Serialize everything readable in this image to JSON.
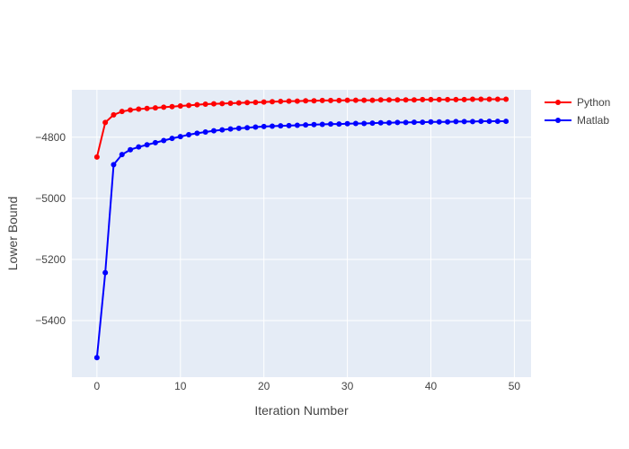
{
  "chart_data": {
    "type": "line",
    "title": "",
    "xlabel": "Iteration Number",
    "ylabel": "Lower Bound",
    "xlim": [
      -3,
      52
    ],
    "ylim": [
      -5585,
      -4645
    ],
    "xticks": [
      0,
      10,
      20,
      30,
      40,
      50
    ],
    "xtick_labels": [
      "0",
      "10",
      "20",
      "30",
      "40",
      "50"
    ],
    "yticks": [
      -5400,
      -5200,
      -5000,
      -4800
    ],
    "ytick_labels": [
      "−5400",
      "−5200",
      "−5000",
      "−4800"
    ],
    "grid": true,
    "legend_position": "top-right",
    "series": [
      {
        "name": "Python",
        "color": "#ff0000",
        "x": [
          0,
          1,
          2,
          3,
          4,
          5,
          6,
          7,
          8,
          9,
          10,
          11,
          12,
          13,
          14,
          15,
          16,
          17,
          18,
          19,
          20,
          21,
          22,
          23,
          24,
          25,
          26,
          27,
          28,
          29,
          30,
          31,
          32,
          33,
          34,
          35,
          36,
          37,
          38,
          39,
          40,
          41,
          42,
          43,
          44,
          45,
          46,
          47,
          48,
          49
        ],
        "values": [
          -4865,
          -4752,
          -4727,
          -4716,
          -4711,
          -4708,
          -4706,
          -4704,
          -4702,
          -4700,
          -4698,
          -4696,
          -4694,
          -4692,
          -4691,
          -4690,
          -4689,
          -4688,
          -4687,
          -4686,
          -4685,
          -4684,
          -4683,
          -4682,
          -4682,
          -4681,
          -4681,
          -4680,
          -4680,
          -4680,
          -4679,
          -4679,
          -4679,
          -4679,
          -4678,
          -4678,
          -4678,
          -4678,
          -4678,
          -4677,
          -4677,
          -4677,
          -4677,
          -4677,
          -4677,
          -4676,
          -4676,
          -4676,
          -4676,
          -4676
        ]
      },
      {
        "name": "Matlab",
        "color": "#0000ff",
        "x": [
          0,
          1,
          2,
          3,
          4,
          5,
          6,
          7,
          8,
          9,
          10,
          11,
          12,
          13,
          14,
          15,
          16,
          17,
          18,
          19,
          20,
          21,
          22,
          23,
          24,
          25,
          26,
          27,
          28,
          29,
          30,
          31,
          32,
          33,
          34,
          35,
          36,
          37,
          38,
          39,
          40,
          41,
          42,
          43,
          44,
          45,
          46,
          47,
          48,
          49
        ],
        "values": [
          -5521,
          -5243,
          -4890,
          -4857,
          -4841,
          -4832,
          -4825,
          -4818,
          -4811,
          -4804,
          -4798,
          -4792,
          -4787,
          -4783,
          -4779,
          -4776,
          -4773,
          -4771,
          -4769,
          -4767,
          -4765,
          -4764,
          -4763,
          -4762,
          -4761,
          -4760,
          -4759,
          -4758,
          -4757,
          -4757,
          -4756,
          -4755,
          -4755,
          -4754,
          -4753,
          -4753,
          -4752,
          -4752,
          -4751,
          -4751,
          -4750,
          -4750,
          -4750,
          -4749,
          -4749,
          -4749,
          -4748,
          -4748,
          -4748,
          -4748
        ]
      }
    ]
  }
}
